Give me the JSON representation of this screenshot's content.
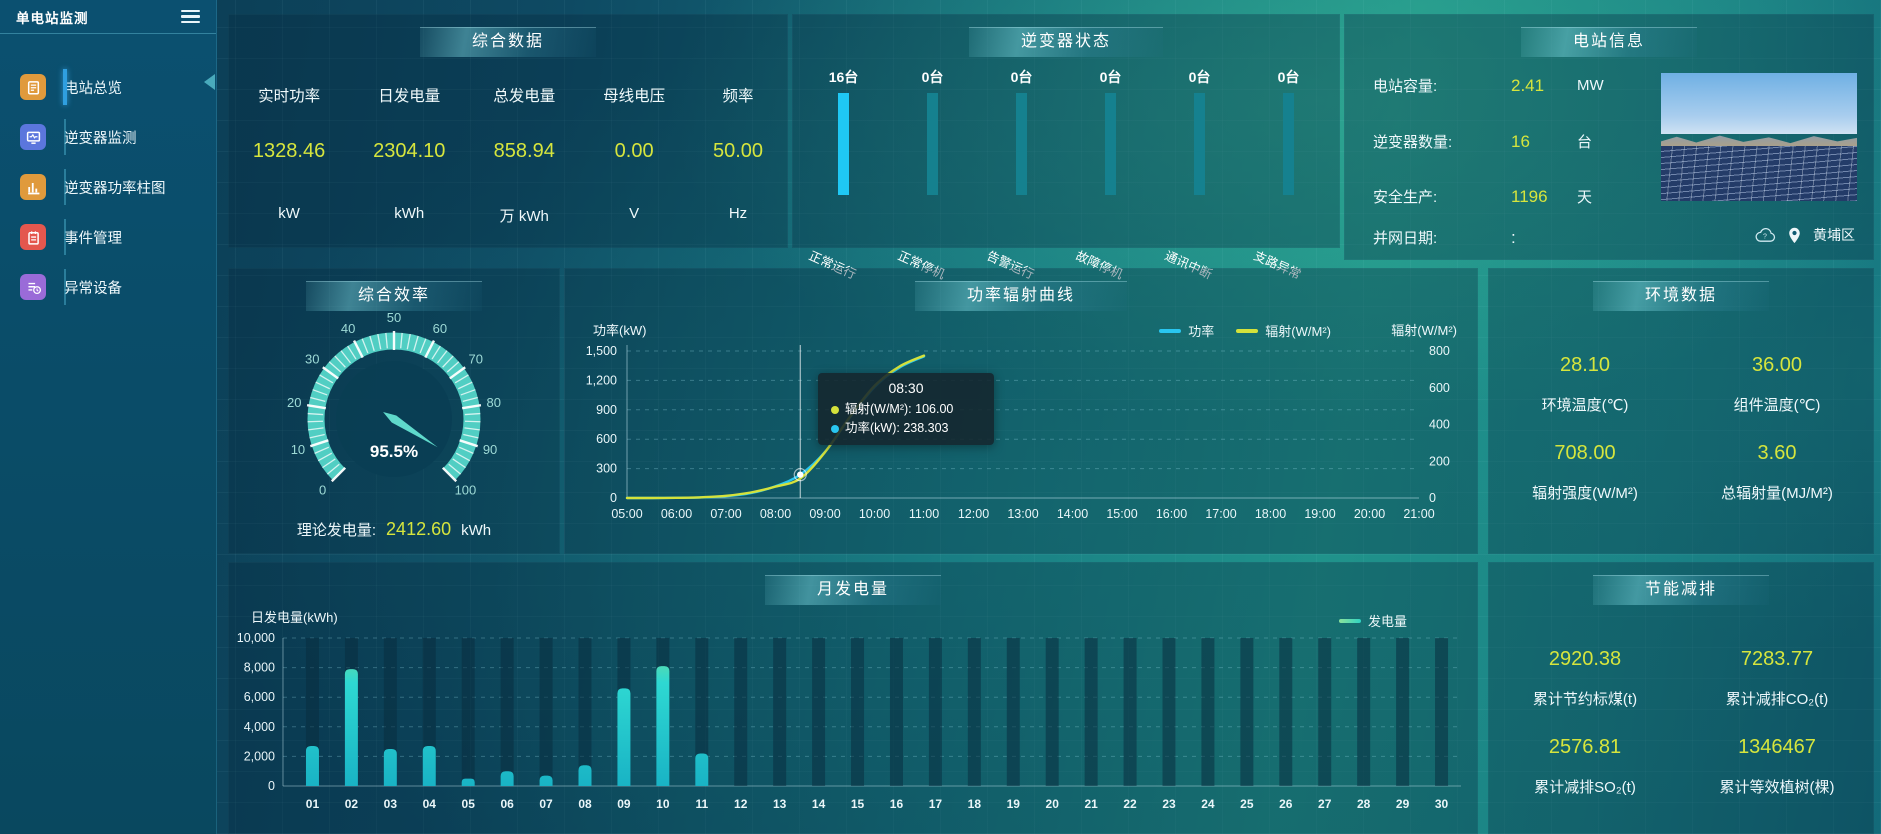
{
  "app": {
    "title": "单电站监测"
  },
  "colors": {
    "value_accent": "#d6e53d",
    "bar_active": "#1fc8f4",
    "bar_idle": "#15818f",
    "power_line": "#29c6f0",
    "radiation_line": "#d5e23b",
    "sidebar_active": "#2f9fe0"
  },
  "sidebar": {
    "items": [
      {
        "label": "电站总览",
        "icon": "station-overview-icon",
        "color": "#e09a3c",
        "active": true
      },
      {
        "label": "逆变器监测",
        "icon": "inverter-monitor-icon",
        "color": "#5b76dd",
        "active": false
      },
      {
        "label": "逆变器功率柱图",
        "icon": "inverter-power-bars-icon",
        "color": "#e09a3c",
        "active": false
      },
      {
        "label": "事件管理",
        "icon": "event-management-icon",
        "color": "#e4574e",
        "active": false
      },
      {
        "label": "异常设备",
        "icon": "abnormal-device-icon",
        "color": "#9a6bd8",
        "active": false
      }
    ]
  },
  "panels": {
    "summary": {
      "title": "综合数据",
      "metrics": [
        {
          "label": "实时功率",
          "value": "1328.46",
          "unit": "kW"
        },
        {
          "label": "日发电量",
          "value": "2304.10",
          "unit": "kWh"
        },
        {
          "label": "总发电量",
          "value": "858.94",
          "unit": "万 kWh"
        },
        {
          "label": "母线电压",
          "value": "0.00",
          "unit": "V"
        },
        {
          "label": "频率",
          "value": "50.00",
          "unit": "Hz"
        }
      ]
    },
    "inverter_status": {
      "title": "逆变器状态",
      "items": [
        {
          "count": "16台",
          "label": "正常运行",
          "active": true
        },
        {
          "count": "0台",
          "label": "正常停机",
          "active": false
        },
        {
          "count": "0台",
          "label": "告警运行",
          "active": false
        },
        {
          "count": "0台",
          "label": "故障停机",
          "active": false
        },
        {
          "count": "0台",
          "label": "通讯中断",
          "active": false
        },
        {
          "count": "0台",
          "label": "支路异常",
          "active": false
        }
      ]
    },
    "station_info": {
      "title": "电站信息",
      "rows": [
        {
          "label": "电站容量:",
          "value": "2.41",
          "unit": "MW"
        },
        {
          "label": "逆变器数量:",
          "value": "16",
          "unit": "台"
        },
        {
          "label": "安全生产:",
          "value": "1196",
          "unit": "天"
        },
        {
          "label": "并网日期:",
          "value": ":",
          "unit": ""
        }
      ],
      "location": "黄埔区"
    },
    "efficiency": {
      "title": "综合效率",
      "gauge_value": 95.5,
      "gauge_text": "95.5%",
      "gauge_min": 0,
      "gauge_max": 100,
      "footer_label": "理论发电量:",
      "footer_value": "2412.60",
      "footer_unit": "kWh"
    },
    "environment": {
      "title": "环境数据",
      "metrics": [
        {
          "value": "28.10",
          "label": "环境温度(℃)"
        },
        {
          "value": "36.00",
          "label": "组件温度(℃)"
        },
        {
          "value": "708.00",
          "label": "辐射强度(W/M²)"
        },
        {
          "value": "3.60",
          "label": "总辐射量(MJ/M²)"
        }
      ]
    },
    "saving": {
      "title": "节能减排",
      "metrics": [
        {
          "value": "2920.38",
          "label": "累计节约标煤(t)"
        },
        {
          "value": "7283.77",
          "label": "累计减排CO₂(t)"
        },
        {
          "value": "2576.81",
          "label": "累计减排SO₂(t)"
        },
        {
          "value": "1346467",
          "label": "累计等效植树(棵)"
        }
      ]
    }
  },
  "chart_data": [
    {
      "id": "power_radiation",
      "type": "line",
      "title": "功率辐射曲线",
      "axis_name_left": "功率(kW)",
      "axis_name_right": "辐射(W/M²)",
      "ylim_left": [
        0,
        1500
      ],
      "yticks_left": [
        "0",
        "300",
        "600",
        "900",
        "1,200",
        "1,500"
      ],
      "ylim_right": [
        0,
        800
      ],
      "yticks_right": [
        "0",
        "200",
        "400",
        "600",
        "800"
      ],
      "xticks": [
        "05:00",
        "06:00",
        "07:00",
        "08:00",
        "09:00",
        "10:00",
        "11:00",
        "12:00",
        "13:00",
        "14:00",
        "15:00",
        "16:00",
        "17:00",
        "18:00",
        "19:00",
        "20:00",
        "21:00"
      ],
      "x_range_hours": [
        5,
        21
      ],
      "grid": "horizontal-dashed",
      "legend": [
        {
          "name": "功率",
          "color": "#29c6f0"
        },
        {
          "name": "辐射(W/M²)",
          "color": "#d5e23b"
        }
      ],
      "series": [
        {
          "name": "功率",
          "axis": "left",
          "color": "#29c6f0",
          "points": [
            [
              5,
              0
            ],
            [
              5.5,
              0
            ],
            [
              6,
              2
            ],
            [
              6.5,
              6
            ],
            [
              7,
              18
            ],
            [
              7.5,
              50
            ],
            [
              8,
              120
            ],
            [
              8.5,
              238.3
            ],
            [
              9,
              470
            ],
            [
              9.5,
              820
            ],
            [
              10,
              1130
            ],
            [
              10.5,
              1330
            ],
            [
              11,
              1445
            ]
          ]
        },
        {
          "name": "辐射",
          "axis": "right",
          "color": "#d5e23b",
          "points": [
            [
              5,
              0
            ],
            [
              5.5,
              0
            ],
            [
              6,
              1
            ],
            [
              6.5,
              4
            ],
            [
              7,
              12
            ],
            [
              7.5,
              30
            ],
            [
              8,
              62
            ],
            [
              8.5,
              106
            ],
            [
              9,
              250
            ],
            [
              9.5,
              440
            ],
            [
              10,
              610
            ],
            [
              10.5,
              715
            ],
            [
              11,
              775
            ]
          ]
        }
      ],
      "tooltip": {
        "time": "08:30",
        "x_hour": 8.5,
        "rows": [
          {
            "color": "#d5e23b",
            "text": "辐射(W/M²): 106.00"
          },
          {
            "color": "#29c6f0",
            "text": "功率(kW): 238.303"
          }
        ]
      }
    },
    {
      "id": "monthly_energy",
      "type": "bar",
      "title": "月发电量",
      "axis_name": "日发电量(kWh)",
      "ylim": [
        0,
        10000
      ],
      "yticks": [
        "0",
        "2,000",
        "4,000",
        "6,000",
        "8,000",
        "10,000"
      ],
      "categories": [
        "01",
        "02",
        "03",
        "04",
        "05",
        "06",
        "07",
        "08",
        "09",
        "10",
        "11",
        "12",
        "13",
        "14",
        "15",
        "16",
        "17",
        "18",
        "19",
        "20",
        "21",
        "22",
        "23",
        "24",
        "25",
        "26",
        "27",
        "28",
        "29",
        "30"
      ],
      "values": [
        2700,
        7900,
        2500,
        2700,
        500,
        1000,
        700,
        1400,
        6600,
        8100,
        2200,
        0,
        0,
        0,
        0,
        0,
        0,
        0,
        0,
        0,
        0,
        0,
        0,
        0,
        0,
        0,
        0,
        0,
        0,
        0
      ],
      "legend": [
        {
          "name": "发电量"
        }
      ]
    }
  ]
}
